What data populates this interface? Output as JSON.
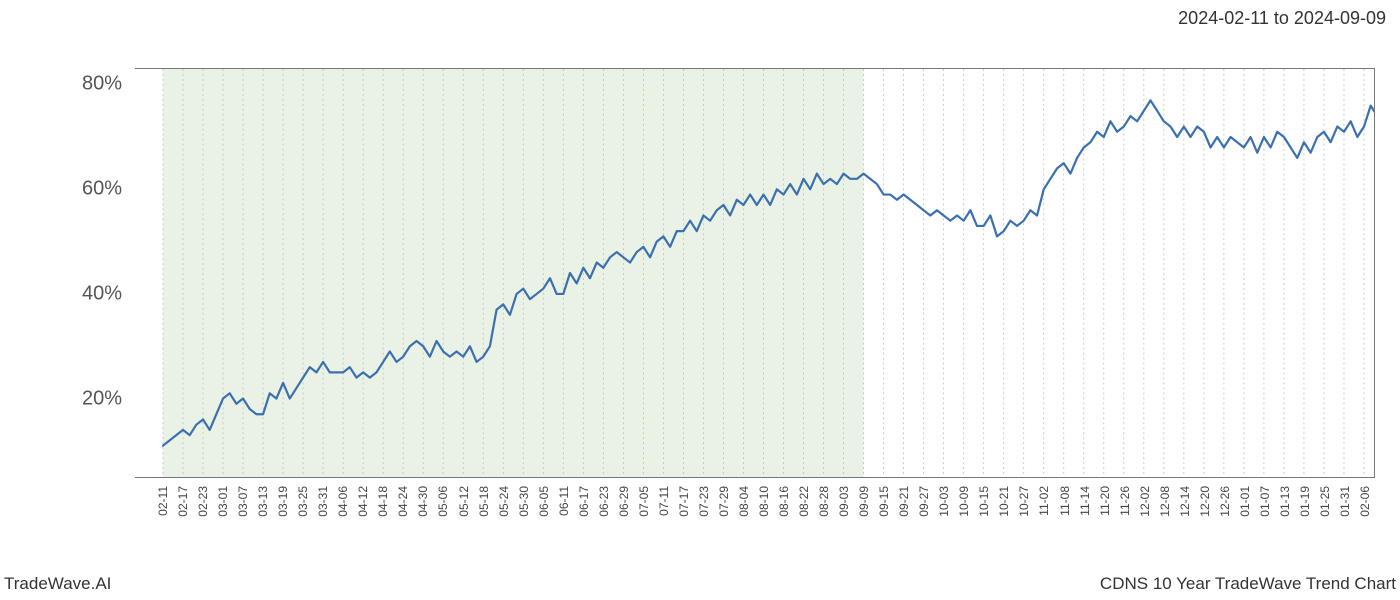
{
  "header": {
    "date_range": "2024-02-11 to 2024-09-09"
  },
  "footer": {
    "brand": "TradeWave.AI",
    "chart_title": "CDNS 10 Year TradeWave Trend Chart"
  },
  "chart": {
    "type": "line",
    "background_color": "#ffffff",
    "highlight_fill": "#d9e8d0",
    "highlight_opacity": 0.55,
    "highlight_start_index": 0,
    "highlight_end_index": 35,
    "line_color": "#3a6fb0",
    "line_width": 2.2,
    "grid_color": "#bfbfbf",
    "grid_dash": "2,3",
    "axis_color": "#777777",
    "y_axis": {
      "min": 5,
      "max": 83,
      "ticks": [
        20,
        40,
        60,
        80
      ],
      "tick_labels": [
        "20%",
        "40%",
        "60%",
        "80%"
      ],
      "label_fontsize": 20,
      "label_color": "#555555"
    },
    "x_axis": {
      "labels": [
        "02-11",
        "02-17",
        "02-23",
        "03-01",
        "03-07",
        "03-13",
        "03-19",
        "03-25",
        "03-31",
        "04-06",
        "04-12",
        "04-18",
        "04-24",
        "04-30",
        "05-06",
        "05-12",
        "05-18",
        "05-24",
        "05-30",
        "06-05",
        "06-11",
        "06-17",
        "06-23",
        "06-29",
        "07-05",
        "07-11",
        "07-17",
        "07-23",
        "07-29",
        "08-04",
        "08-10",
        "08-16",
        "08-22",
        "08-28",
        "09-03",
        "09-09",
        "09-15",
        "09-21",
        "09-27",
        "10-03",
        "10-09",
        "10-15",
        "10-21",
        "10-27",
        "11-02",
        "11-08",
        "11-14",
        "11-20",
        "11-26",
        "12-02",
        "12-08",
        "12-14",
        "12-20",
        "12-26",
        "01-01",
        "01-07",
        "01-13",
        "01-19",
        "01-25",
        "01-31",
        "02-06"
      ],
      "label_fontsize": 12,
      "label_color": "#444444"
    },
    "series": [
      {
        "name": "trend",
        "points_per_segment": 3,
        "values": [
          11,
          12,
          13,
          14,
          13,
          15,
          16,
          14,
          17,
          20,
          21,
          19,
          20,
          18,
          17,
          17,
          21,
          20,
          23,
          20,
          22,
          24,
          26,
          25,
          27,
          25,
          25,
          25,
          26,
          24,
          25,
          24,
          25,
          27,
          29,
          27,
          28,
          30,
          31,
          30,
          28,
          31,
          29,
          28,
          29,
          28,
          30,
          27,
          28,
          30,
          37,
          38,
          36,
          40,
          41,
          39,
          40,
          41,
          43,
          40,
          40,
          44,
          42,
          45,
          43,
          46,
          45,
          47,
          48,
          47,
          46,
          48,
          49,
          47,
          50,
          51,
          49,
          52,
          52,
          54,
          52,
          55,
          54,
          56,
          57,
          55,
          58,
          57,
          59,
          57,
          59,
          57,
          60,
          59,
          61,
          59,
          62,
          60,
          63,
          61,
          62,
          61,
          63,
          62,
          62,
          63,
          62,
          61,
          59,
          59,
          58,
          59,
          58,
          57,
          56,
          55,
          56,
          55,
          54,
          55,
          54,
          56,
          53,
          53,
          55,
          51,
          52,
          54,
          53,
          54,
          56,
          55,
          60,
          62,
          64,
          65,
          63,
          66,
          68,
          69,
          71,
          70,
          73,
          71,
          72,
          74,
          73,
          75,
          77,
          75,
          73,
          72,
          70,
          72,
          70,
          72,
          71,
          68,
          70,
          68,
          70,
          69,
          68,
          70,
          67,
          70,
          68,
          71,
          70,
          68,
          66,
          69,
          67,
          70,
          71,
          69,
          72,
          71,
          73,
          70,
          72,
          76,
          74,
          77,
          73,
          75
        ]
      }
    ]
  }
}
